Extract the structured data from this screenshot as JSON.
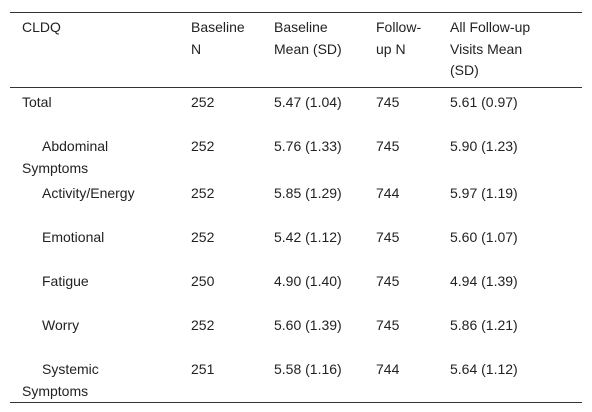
{
  "table": {
    "headers": [
      "CLDQ",
      "Baseline N",
      "Baseline Mean (SD)",
      "Follow-up N",
      "All Follow-up Visits Mean (SD)"
    ],
    "rows": [
      [
        "Total",
        "252",
        "5.47 (1.04)",
        "745",
        "5.61 (0.97)"
      ],
      [
        "Abdominal Symptoms",
        "252",
        "5.76 (1.33)",
        "745",
        "5.90 (1.23)"
      ],
      [
        "Activity/Energy",
        "252",
        "5.85 (1.29)",
        "744",
        "5.97 (1.19)"
      ],
      [
        "Emotional",
        "252",
        "5.42 (1.12)",
        "745",
        "5.60 (1.07)"
      ],
      [
        "Fatigue",
        "250",
        "4.90 (1.40)",
        "745",
        "4.94 (1.39)"
      ],
      [
        "Worry",
        "252",
        "5.60 (1.39)",
        "745",
        "5.86 (1.21)"
      ],
      [
        "Systemic Symptoms",
        "251",
        "5.58 (1.16)",
        "744",
        "5.64 (1.12)"
      ]
    ]
  }
}
